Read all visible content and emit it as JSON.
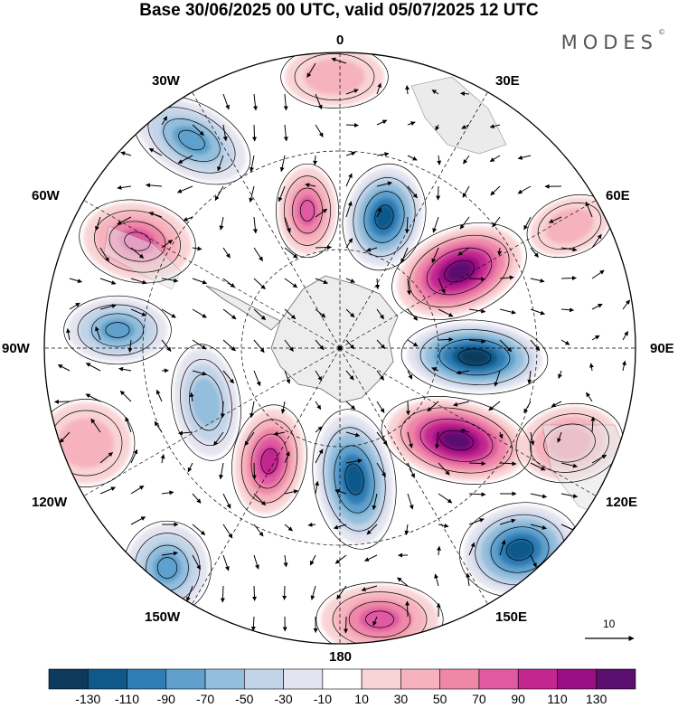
{
  "title": "Base 30/06/2025 00 UTC, valid 05/07/2025 12 UTC",
  "brand": "MODES",
  "brand_mark": "©",
  "longitude_labels": {
    "lon_0": "0",
    "lon_30e": "30E",
    "lon_60e": "60E",
    "lon_90e": "90E",
    "lon_120e": "120E",
    "lon_150e": "150E",
    "lon_180": "180",
    "lon_150w": "150W",
    "lon_120w": "120W",
    "lon_90w": "90W",
    "lon_60w": "60W",
    "lon_30w": "30W"
  },
  "reference_vector": {
    "label": "10"
  },
  "colorbar": {
    "labels": [
      "-130",
      "-110",
      "-90",
      "-70",
      "-50",
      "-30",
      "-10",
      "10",
      "30",
      "50",
      "70",
      "90",
      "110",
      "130"
    ],
    "colors": [
      "#0d3a5c",
      "#11588a",
      "#2f7db5",
      "#5fa0cc",
      "#93bedc",
      "#c3d4e8",
      "#e4e4f0",
      "#ffffff",
      "#f9d4d6",
      "#f6b3be",
      "#ef87a8",
      "#e05aa2",
      "#c4268f",
      "#9a0e84",
      "#5a0f6e"
    ]
  },
  "fields": {
    "map_projection": "polar-stereographic-south",
    "shading": "anomaly",
    "vectors": "wind"
  }
}
